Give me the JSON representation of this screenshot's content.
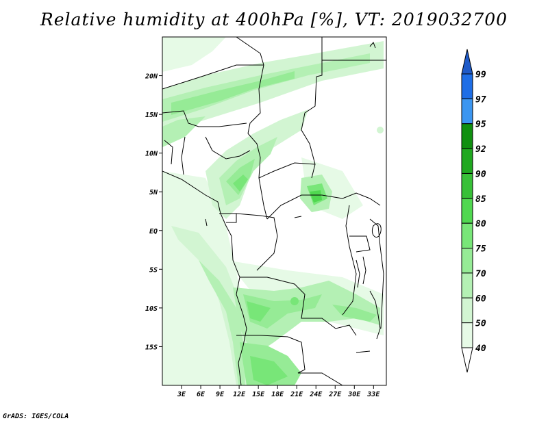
{
  "title": "Relative humidity at 400hPa [%], VT: 2019032700",
  "credit": "GrADS: IGES/COLA",
  "map": {
    "lat_labels": [
      "20N",
      "15N",
      "10N",
      "5N",
      "EQ",
      "5S",
      "10S",
      "15S"
    ],
    "lon_labels": [
      "3E",
      "6E",
      "9E",
      "12E",
      "15E",
      "18E",
      "21E",
      "24E",
      "27E",
      "30E",
      "33E"
    ],
    "lat_range": [
      -20,
      25
    ],
    "lon_range": [
      0,
      35
    ]
  },
  "colorbar": {
    "levels": [
      "99",
      "97",
      "95",
      "92",
      "90",
      "85",
      "80",
      "75",
      "70",
      "60",
      "50",
      "40"
    ],
    "colors": [
      "#1e64d2",
      "#1e6ee6",
      "#3c96f0",
      "#109010",
      "#20a820",
      "#38c038",
      "#50d850",
      "#78e678",
      "#96eb96",
      "#b4f0b4",
      "#d2f5d2",
      "#e6fae6"
    ],
    "top_arrow_color": "#1e5ac8",
    "bottom_arrow_color": "#ffffff"
  }
}
